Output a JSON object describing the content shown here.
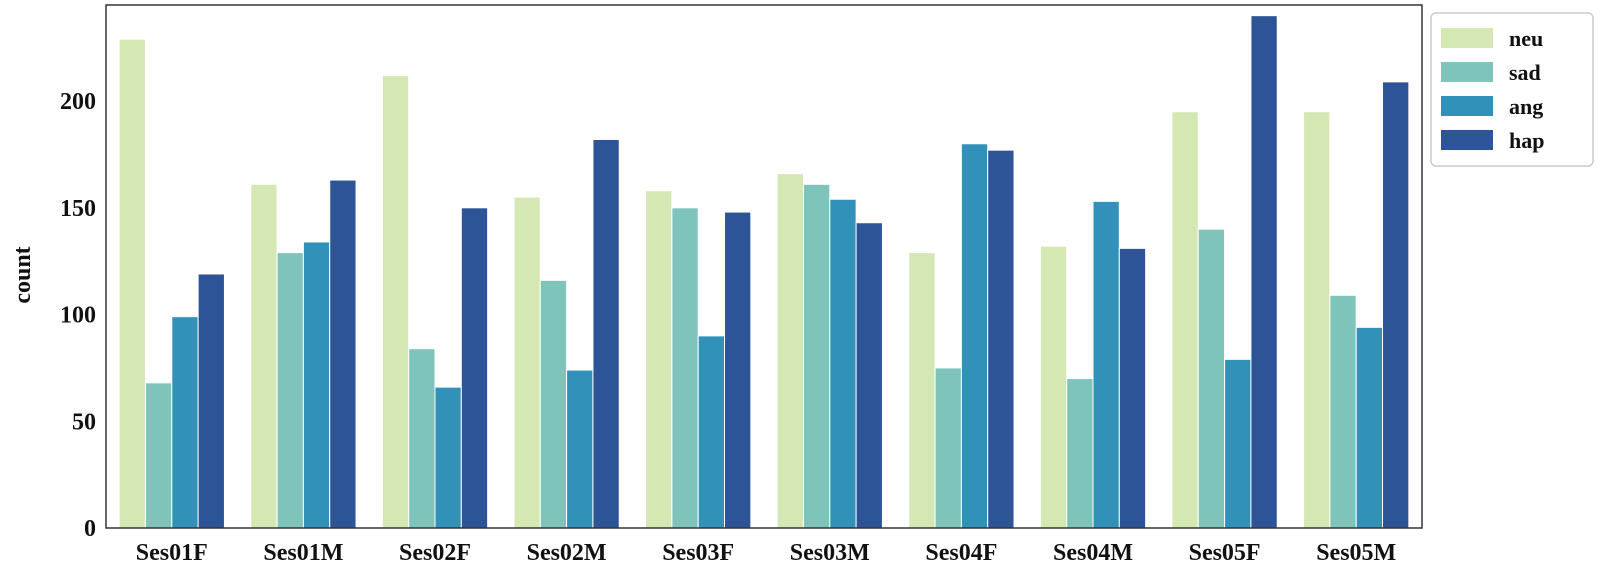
{
  "chart_data": {
    "type": "bar",
    "title": "",
    "xlabel": "",
    "ylabel": "count",
    "ylim": [
      0,
      245
    ],
    "yticks": [
      0,
      50,
      100,
      150,
      200
    ],
    "grid": false,
    "legend_position": "top-right-outside",
    "categories": [
      "Ses01F",
      "Ses01M",
      "Ses02F",
      "Ses02M",
      "Ses03F",
      "Ses03M",
      "Ses04F",
      "Ses04M",
      "Ses05F",
      "Ses05M"
    ],
    "series": [
      {
        "name": "neu",
        "color": "#d5e8b4",
        "values": [
          229,
          161,
          212,
          155,
          158,
          166,
          129,
          132,
          195,
          195
        ]
      },
      {
        "name": "sad",
        "color": "#7fc4bb",
        "values": [
          68,
          129,
          84,
          116,
          150,
          161,
          75,
          70,
          140,
          109
        ]
      },
      {
        "name": "ang",
        "color": "#3291b9",
        "values": [
          99,
          134,
          66,
          74,
          90,
          154,
          180,
          153,
          79,
          94
        ]
      },
      {
        "name": "hap",
        "color": "#2d5497",
        "values": [
          119,
          163,
          150,
          182,
          148,
          143,
          177,
          131,
          240,
          209
        ]
      }
    ]
  }
}
